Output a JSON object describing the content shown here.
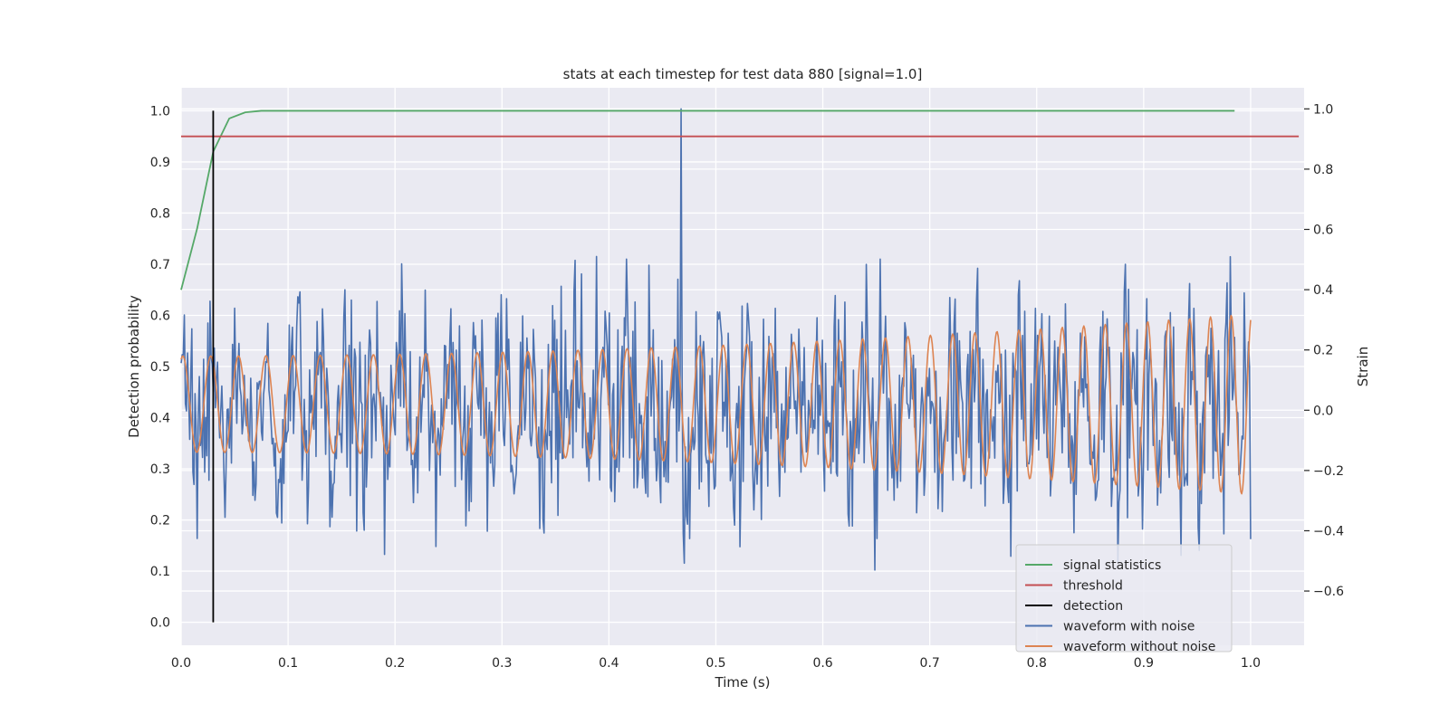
{
  "chart_data": {
    "type": "line",
    "title": "stats at each timestep for test data 880 [signal=1.0]",
    "xlabel": "Time (s)",
    "ylabel": "Detection probability",
    "ylabel_right": "Strain",
    "xlim": [
      0.0,
      1.05
    ],
    "ylim": [
      -0.045,
      1.045
    ],
    "ylim_right": [
      -0.78,
      1.07
    ],
    "xticks": [
      0.0,
      0.1,
      0.2,
      0.3,
      0.4,
      0.5,
      0.6,
      0.7,
      0.8,
      0.9,
      1.0
    ],
    "xtick_labels": [
      "0.0",
      "0.1",
      "0.2",
      "0.3",
      "0.4",
      "0.5",
      "0.6",
      "0.7",
      "0.8",
      "0.9",
      "1.0"
    ],
    "yticks": [
      0.0,
      0.1,
      0.2,
      0.3,
      0.4,
      0.5,
      0.6,
      0.7,
      0.8,
      0.9,
      1.0
    ],
    "ytick_labels": [
      "0.0",
      "0.1",
      "0.2",
      "0.3",
      "0.4",
      "0.5",
      "0.6",
      "0.7",
      "0.8",
      "0.9",
      "1.0"
    ],
    "yticks_right": [
      -0.6,
      -0.4,
      -0.2,
      0.0,
      0.2,
      0.4,
      0.6,
      0.8,
      1.0
    ],
    "ytick_labels_right": [
      "−0.6",
      "−0.4",
      "−0.2",
      "0.0",
      "0.2",
      "0.4",
      "0.6",
      "0.8",
      "1.0"
    ],
    "grid": true,
    "legend_position": "lower-right",
    "series": [
      {
        "name": "signal statistics",
        "axis": "left",
        "color": "#55a868",
        "x": [
          0.0,
          0.015,
          0.03,
          0.045,
          0.06,
          0.075,
          0.09,
          0.2,
          0.4,
          0.6,
          0.8,
          0.985
        ],
        "y": [
          0.65,
          0.77,
          0.92,
          0.985,
          0.997,
          1.0,
          1.0,
          1.0,
          1.0,
          1.0,
          1.0,
          1.0
        ]
      },
      {
        "name": "threshold",
        "axis": "left",
        "color": "#c44e52",
        "x": [
          0.0,
          1.045
        ],
        "y": [
          0.95,
          0.95
        ]
      },
      {
        "name": "detection",
        "axis": "left",
        "color": "#000000",
        "x": [
          0.03,
          0.03
        ],
        "y": [
          0.0,
          1.0
        ]
      },
      {
        "name": "waveform with noise",
        "axis": "right",
        "color": "#4c72b0",
        "generated": {
          "x_start": 0.0,
          "x_end": 1.0,
          "points": 1000,
          "std": 0.18,
          "peak_x": 0.467,
          "peak_y": 1.0
        }
      },
      {
        "name": "waveform without noise",
        "axis": "right",
        "color": "#dd8452",
        "generated": {
          "x_start": 0.0,
          "x_end": 1.0,
          "points": 1200,
          "f0": 38,
          "f1": 52,
          "amp_start": 0.16,
          "amp_end": 0.3
        }
      }
    ]
  }
}
